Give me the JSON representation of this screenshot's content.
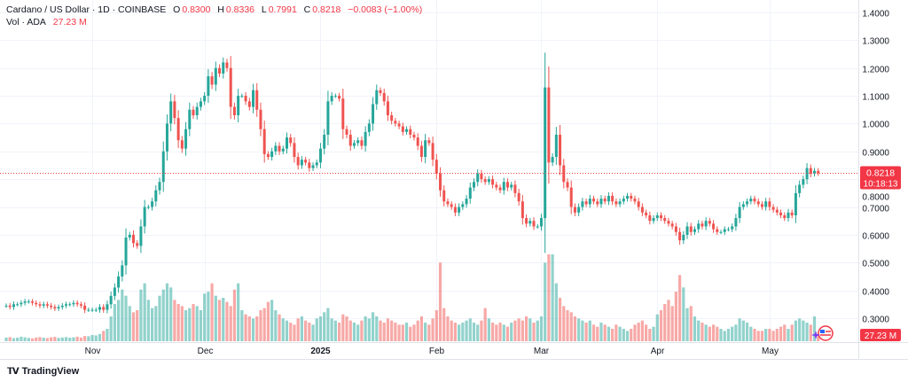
{
  "header": {
    "symbol": "Cardano / US Dollar · 1D · COINBASE",
    "open_label": "O",
    "open": "0.8300",
    "high_label": "H",
    "high": "0.8336",
    "low_label": "L",
    "low": "0.7991",
    "close_label": "C",
    "close": "0.8218",
    "change": "−0.0083 (−1.00%)",
    "volume_label": "Vol · ADA",
    "volume": "27.23 M"
  },
  "price_tag": {
    "price": "0.8218",
    "countdown": "10:18:13"
  },
  "volume_tag": "27.23 M",
  "footer": {
    "brand": "TradingView"
  },
  "colors": {
    "up": "#26a69a",
    "down": "#ef5350",
    "tag": "#f23645",
    "grid": "#f0f3fa"
  },
  "chart_data": {
    "type": "candlestick",
    "title": "Cardano / US Dollar · 1D · COINBASE",
    "y_ticks": [
      "1.4000",
      "1.3000",
      "1.2000",
      "1.1000",
      "1.0000",
      "0.9000",
      "0.8000",
      "0.7000",
      "0.6000",
      "0.5000",
      "0.4000",
      "0.3000"
    ],
    "y_tick_values": [
      1.4,
      1.3,
      1.2,
      1.1,
      1.0,
      0.9,
      0.8,
      0.7,
      0.6,
      0.5,
      0.4,
      0.3
    ],
    "ylim": [
      0.3,
      1.4
    ],
    "x_ticks": [
      {
        "label": "Nov",
        "index": 23,
        "bold": false
      },
      {
        "label": "Dec",
        "index": 53,
        "bold": false
      },
      {
        "label": "2025",
        "index": 84,
        "bold": true
      },
      {
        "label": "Feb",
        "index": 115,
        "bold": false
      },
      {
        "label": "Mar",
        "index": 143,
        "bold": false
      },
      {
        "label": "Apr",
        "index": 174,
        "bold": false
      },
      {
        "label": "May",
        "index": 204,
        "bold": false
      }
    ],
    "first_open": 0.345,
    "close": [
      0.345,
      0.34,
      0.35,
      0.35,
      0.355,
      0.36,
      0.36,
      0.355,
      0.35,
      0.345,
      0.35,
      0.345,
      0.34,
      0.335,
      0.34,
      0.345,
      0.35,
      0.35,
      0.355,
      0.35,
      0.345,
      0.33,
      0.33,
      0.33,
      0.33,
      0.34,
      0.33,
      0.35,
      0.38,
      0.41,
      0.45,
      0.49,
      0.59,
      0.6,
      0.57,
      0.56,
      0.63,
      0.7,
      0.7,
      0.72,
      0.76,
      0.79,
      0.9,
      1.0,
      1.08,
      1.02,
      0.94,
      0.91,
      0.98,
      1.05,
      1.03,
      1.06,
      1.08,
      1.1,
      1.17,
      1.14,
      1.2,
      1.18,
      1.22,
      1.2,
      1.06,
      1.03,
      1.1,
      1.1,
      1.08,
      1.06,
      1.12,
      1.05,
      0.98,
      0.89,
      0.88,
      0.9,
      0.92,
      0.9,
      0.91,
      0.95,
      0.93,
      0.88,
      0.85,
      0.87,
      0.86,
      0.84,
      0.85,
      0.86,
      0.91,
      0.96,
      1.08,
      1.1,
      1.1,
      1.09,
      0.98,
      0.96,
      0.92,
      0.93,
      0.94,
      0.92,
      0.97,
      1.0,
      1.07,
      1.12,
      1.11,
      1.08,
      1.03,
      1.01,
      1.0,
      0.99,
      0.97,
      0.98,
      0.96,
      0.95,
      0.92,
      0.88,
      0.94,
      0.93,
      0.87,
      0.82,
      0.76,
      0.72,
      0.71,
      0.7,
      0.68,
      0.7,
      0.71,
      0.73,
      0.77,
      0.79,
      0.82,
      0.8,
      0.79,
      0.8,
      0.78,
      0.77,
      0.76,
      0.79,
      0.77,
      0.78,
      0.75,
      0.72,
      0.66,
      0.64,
      0.65,
      0.63,
      0.63,
      0.66,
      1.13,
      0.86,
      0.88,
      0.96,
      0.85,
      0.79,
      0.77,
      0.7,
      0.68,
      0.7,
      0.72,
      0.71,
      0.73,
      0.72,
      0.71,
      0.73,
      0.72,
      0.74,
      0.72,
      0.71,
      0.72,
      0.73,
      0.74,
      0.73,
      0.72,
      0.7,
      0.68,
      0.67,
      0.65,
      0.66,
      0.67,
      0.66,
      0.65,
      0.64,
      0.63,
      0.61,
      0.58,
      0.6,
      0.63,
      0.61,
      0.62,
      0.64,
      0.63,
      0.65,
      0.64,
      0.62,
      0.61,
      0.61,
      0.62,
      0.62,
      0.63,
      0.66,
      0.7,
      0.71,
      0.72,
      0.73,
      0.72,
      0.71,
      0.7,
      0.72,
      0.7,
      0.69,
      0.68,
      0.67,
      0.66,
      0.68,
      0.67,
      0.75,
      0.78,
      0.8,
      0.84,
      0.82,
      0.83,
      0.8218
    ],
    "volume_millions": [
      18,
      20,
      15,
      17,
      22,
      19,
      16,
      14,
      18,
      20,
      17,
      15,
      19,
      21,
      16,
      18,
      20,
      17,
      19,
      22,
      18,
      25,
      24,
      30,
      28,
      35,
      50,
      60,
      120,
      180,
      200,
      250,
      220,
      170,
      140,
      150,
      250,
      280,
      200,
      160,
      170,
      220,
      250,
      280,
      260,
      200,
      180,
      170,
      150,
      160,
      180,
      170,
      150,
      230,
      240,
      280,
      220,
      200,
      210,
      190,
      170,
      250,
      280,
      150,
      130,
      120,
      110,
      120,
      150,
      160,
      190,
      200,
      150,
      130,
      110,
      100,
      90,
      80,
      110,
      120,
      100,
      90,
      80,
      110,
      120,
      140,
      160,
      110,
      100,
      90,
      130,
      120,
      100,
      90,
      80,
      100,
      120,
      110,
      140,
      120,
      100,
      90,
      110,
      100,
      90,
      80,
      80,
      90,
      70,
      80,
      100,
      120,
      90,
      80,
      110,
      150,
      380,
      160,
      120,
      100,
      90,
      80,
      90,
      100,
      110,
      90,
      80,
      100,
      160,
      110,
      90,
      80,
      90,
      80,
      70,
      90,
      100,
      110,
      100,
      120,
      110,
      90,
      100,
      120,
      380,
      420,
      420,
      280,
      210,
      170,
      150,
      140,
      120,
      110,
      100,
      90,
      100,
      80,
      70,
      90,
      80,
      70,
      60,
      80,
      70,
      60,
      50,
      60,
      80,
      90,
      100,
      80,
      60,
      70,
      130,
      150,
      180,
      200,
      170,
      240,
      320,
      260,
      160,
      170,
      120,
      100,
      90,
      80,
      70,
      80,
      70,
      60,
      50,
      60,
      70,
      80,
      110,
      100,
      90,
      70,
      60,
      50,
      50,
      60,
      60,
      50,
      60,
      70,
      80,
      60,
      80,
      100,
      110,
      100,
      90,
      80,
      120,
      27.23
    ]
  }
}
